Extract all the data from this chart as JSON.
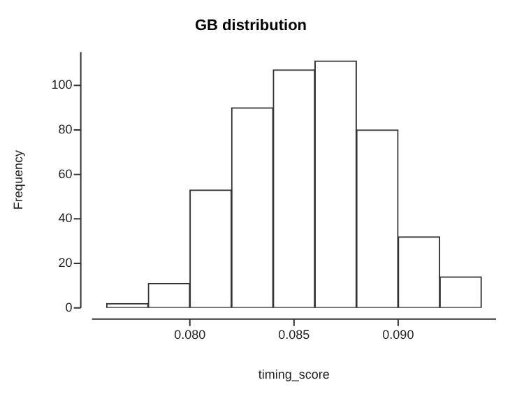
{
  "chart_data": {
    "type": "histogram",
    "title": "GB distribution",
    "xlabel": "timing_score",
    "ylabel": "Frequency",
    "bins": [
      0.076,
      0.078,
      0.08,
      0.082,
      0.084,
      0.086,
      0.088,
      0.09,
      0.092,
      0.094
    ],
    "values": [
      2,
      11,
      53,
      90,
      107,
      111,
      80,
      32,
      14
    ],
    "color": "#ffffff",
    "xlim": [
      0.0753,
      0.0947
    ],
    "xticks": [
      {
        "value": 0.08,
        "label": "0.080"
      },
      {
        "value": 0.085,
        "label": "0.085"
      },
      {
        "value": 0.09,
        "label": "0.090"
      }
    ],
    "ylim": [
      0,
      115
    ],
    "yticks": [
      0,
      20,
      40,
      60,
      80,
      100
    ],
    "grid": false,
    "legend": false
  }
}
